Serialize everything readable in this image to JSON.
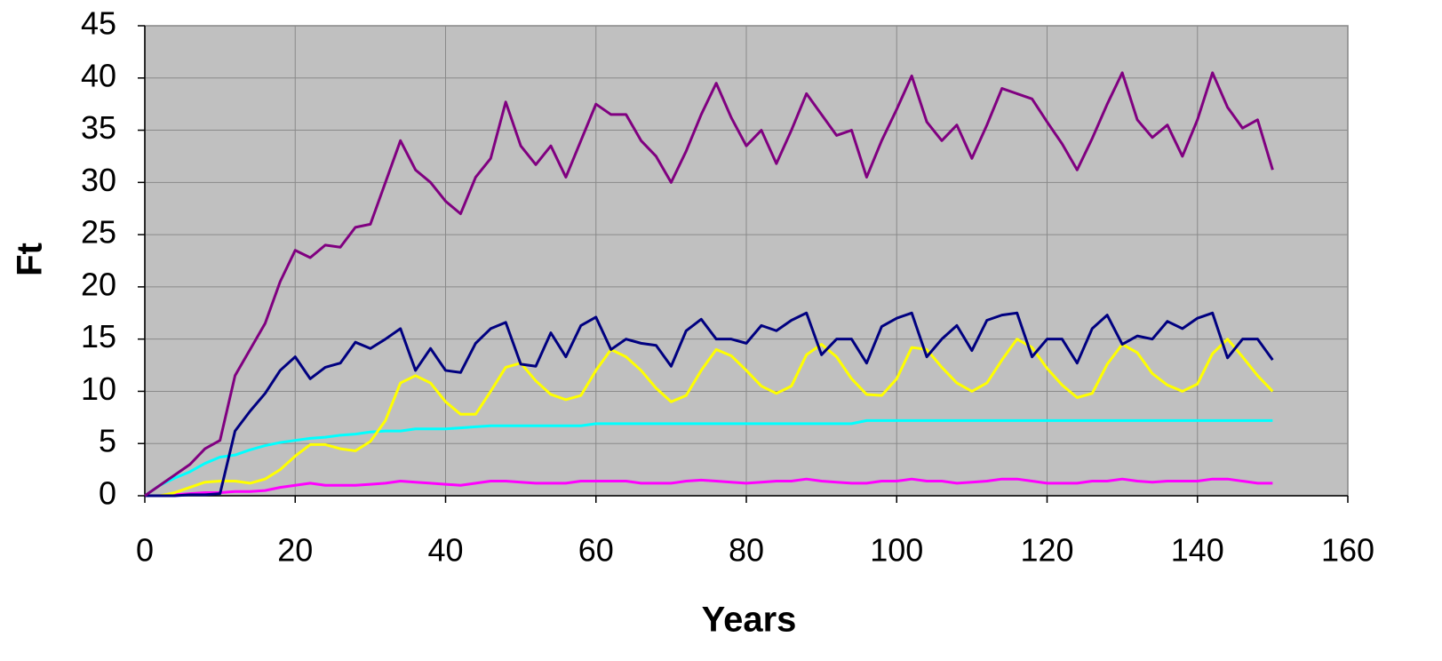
{
  "chart_data": {
    "type": "line",
    "xlabel": "Years",
    "ylabel": "Ft",
    "xlim": [
      0,
      160
    ],
    "xticks": [
      0,
      20,
      40,
      60,
      80,
      100,
      120,
      140,
      160
    ],
    "ylim": [
      0,
      45
    ],
    "yticks": [
      0,
      5,
      10,
      15,
      20,
      25,
      30,
      35,
      40,
      45
    ],
    "grid": true,
    "background": "#c0c0c0",
    "x": [
      0,
      2,
      4,
      6,
      8,
      10,
      12,
      14,
      16,
      18,
      20,
      22,
      24,
      26,
      28,
      30,
      32,
      34,
      36,
      38,
      40,
      42,
      44,
      46,
      48,
      50,
      52,
      54,
      56,
      58,
      60,
      62,
      64,
      66,
      68,
      70,
      72,
      74,
      76,
      78,
      80,
      82,
      84,
      86,
      88,
      90,
      92,
      94,
      96,
      98,
      100,
      102,
      104,
      106,
      108,
      110,
      112,
      114,
      116,
      118,
      120,
      122,
      124,
      126,
      128,
      130,
      132,
      134,
      136,
      138,
      140,
      142,
      144,
      146,
      148,
      150
    ],
    "series": [
      {
        "color": "#00ffff",
        "values": [
          0,
          1,
          1.7,
          2.3,
          3.1,
          3.7,
          3.9,
          4.4,
          4.8,
          5.1,
          5.3,
          5.5,
          5.6,
          5.8,
          5.9,
          6.1,
          6.2,
          6.2,
          6.4,
          6.4,
          6.4,
          6.5,
          6.6,
          6.7,
          6.7,
          6.7,
          6.7,
          6.7,
          6.7,
          6.7,
          6.9,
          6.9,
          6.9,
          6.9,
          6.9,
          6.9,
          6.9,
          6.9,
          6.9,
          6.9,
          6.9,
          6.9,
          6.9,
          6.9,
          6.9,
          6.9,
          6.9,
          6.9,
          7.2,
          7.2,
          7.2,
          7.2,
          7.2,
          7.2,
          7.2,
          7.2,
          7.2,
          7.2,
          7.2,
          7.2,
          7.2,
          7.2,
          7.2,
          7.2,
          7.2,
          7.2,
          7.2,
          7.2,
          7.2,
          7.2,
          7.2,
          7.2,
          7.2,
          7.2,
          7.2,
          7.2
        ]
      },
      {
        "color": "#ff00ff",
        "values": [
          0,
          0,
          0.1,
          0.2,
          0.3,
          0.3,
          0.4,
          0.4,
          0.5,
          0.8,
          1,
          1.2,
          1,
          1,
          1,
          1.1,
          1.2,
          1.4,
          1.3,
          1.2,
          1.1,
          1,
          1.2,
          1.4,
          1.4,
          1.3,
          1.2,
          1.2,
          1.2,
          1.4,
          1.4,
          1.4,
          1.4,
          1.2,
          1.2,
          1.2,
          1.4,
          1.5,
          1.4,
          1.3,
          1.2,
          1.3,
          1.4,
          1.4,
          1.6,
          1.4,
          1.3,
          1.2,
          1.2,
          1.4,
          1.4,
          1.6,
          1.4,
          1.4,
          1.2,
          1.3,
          1.4,
          1.6,
          1.6,
          1.4,
          1.2,
          1.2,
          1.2,
          1.4,
          1.4,
          1.6,
          1.4,
          1.3,
          1.4,
          1.4,
          1.4,
          1.6,
          1.6,
          1.4,
          1.2,
          1.2
        ]
      },
      {
        "color": "#ffff00",
        "values": [
          0,
          0,
          0.3,
          0.8,
          1.3,
          1.4,
          1.4,
          1.2,
          1.6,
          2.5,
          3.8,
          4.9,
          4.9,
          4.5,
          4.3,
          5.2,
          7.2,
          10.8,
          11.5,
          10.8,
          9,
          7.8,
          7.8,
          10,
          12.3,
          12.7,
          11,
          9.7,
          9.2,
          9.6,
          12,
          14,
          13.3,
          12,
          10.3,
          9,
          9.6,
          12,
          14,
          13.4,
          12,
          10.5,
          9.8,
          10.5,
          13.5,
          14.5,
          13.3,
          11.2,
          9.7,
          9.6,
          11.2,
          14.2,
          14,
          12.3,
          10.8,
          10,
          10.8,
          13,
          15,
          14.2,
          12.2,
          10.6,
          9.4,
          9.8,
          12.6,
          14.5,
          13.7,
          11.7,
          10.6,
          10,
          10.7,
          13.6,
          15,
          13.3,
          11.5,
          10
        ]
      },
      {
        "color": "#000080",
        "values": [
          0,
          0,
          0,
          0.1,
          0.1,
          0.2,
          6.2,
          8.1,
          9.8,
          12,
          13.3,
          11.2,
          12.3,
          12.7,
          14.7,
          14.1,
          15,
          16,
          12,
          14.1,
          12,
          11.8,
          14.6,
          16,
          16.6,
          12.6,
          12.4,
          15.6,
          13.3,
          16.3,
          17.1,
          14,
          15,
          14.6,
          14.4,
          12.4,
          15.8,
          16.9,
          15,
          15,
          14.6,
          16.3,
          15.8,
          16.8,
          17.5,
          13.5,
          15,
          15,
          12.7,
          16.2,
          17,
          17.5,
          13.3,
          15,
          16.3,
          13.9,
          16.8,
          17.3,
          17.5,
          13.3,
          15,
          15,
          12.7,
          16,
          17.3,
          14.5,
          15.3,
          15,
          16.7,
          16,
          17,
          17.5,
          13.2,
          15,
          15,
          13
        ]
      },
      {
        "color": "#800080",
        "values": [
          0,
          1,
          2,
          3,
          4.5,
          5.3,
          11.5,
          14,
          16.5,
          20.5,
          23.5,
          22.8,
          24,
          23.8,
          25.7,
          26,
          30,
          34,
          31.2,
          30,
          28.2,
          27,
          30.5,
          32.3,
          37.7,
          33.5,
          31.7,
          33.5,
          30.5,
          34,
          37.5,
          36.5,
          36.5,
          34,
          32.5,
          30,
          33,
          36.5,
          39.5,
          36.2,
          33.5,
          35,
          31.8,
          35,
          38.5,
          36.5,
          34.5,
          35,
          30.5,
          34,
          37,
          40.2,
          35.8,
          34,
          35.5,
          32.3,
          35.5,
          39,
          38.5,
          38,
          35.8,
          33.7,
          31.2,
          34.2,
          37.5,
          40.5,
          36,
          34.3,
          35.5,
          32.5,
          36,
          40.5,
          37.2,
          35.2,
          36,
          31.2
        ]
      }
    ]
  }
}
